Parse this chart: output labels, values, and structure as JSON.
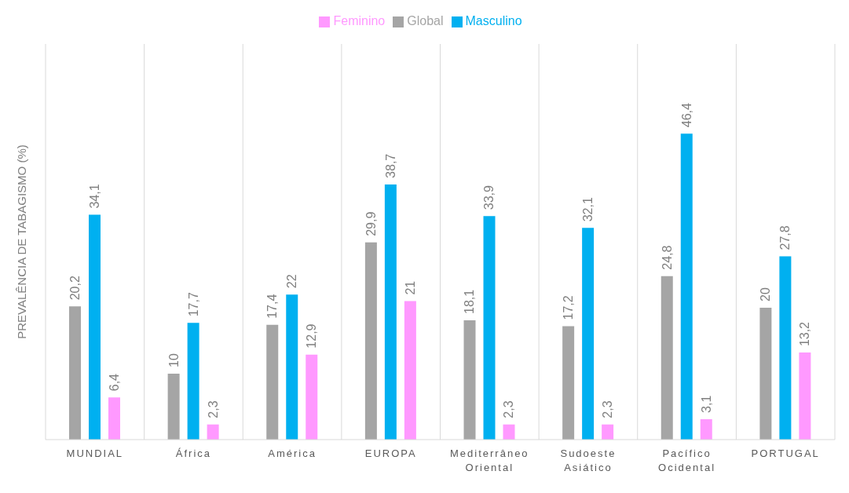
{
  "chart_data": {
    "type": "bar",
    "ylabel": "PREVALÊNCIA DE TABAGISMO (%)",
    "categories": [
      "MUNDIAL",
      "África",
      "América",
      "EUROPA",
      "Mediterrâneo Oriental",
      "Sudoeste Asiático",
      "Pacífico Ocidental",
      "PORTUGAL"
    ],
    "series": [
      {
        "name": "Global",
        "color": "#a5a5a5",
        "values": [
          20.2,
          10,
          17.4,
          29.9,
          18.1,
          17.2,
          24.8,
          20
        ],
        "value_labels": [
          "20,2",
          "10",
          "17,4",
          "29,9",
          "18,1",
          "17,2",
          "24,8",
          "20"
        ]
      },
      {
        "name": "Masculino",
        "color": "#00b0f0",
        "values": [
          34.1,
          17.7,
          22,
          38.7,
          33.9,
          32.1,
          46.4,
          27.8
        ],
        "value_labels": [
          "34,1",
          "17,7",
          "22",
          "38,7",
          "33,9",
          "32,1",
          "46,4",
          "27,8"
        ]
      },
      {
        "name": "Feminino",
        "color": "#ff99ff",
        "values": [
          6.4,
          2.3,
          12.9,
          21,
          2.3,
          2.3,
          3.1,
          13.2
        ],
        "value_labels": [
          "6,4",
          "2,3",
          "12,9",
          "21",
          "2,3",
          "2,3",
          "3,1",
          "13,2"
        ]
      }
    ],
    "legend": "top",
    "grid": "x",
    "tick_labels": "x"
  }
}
